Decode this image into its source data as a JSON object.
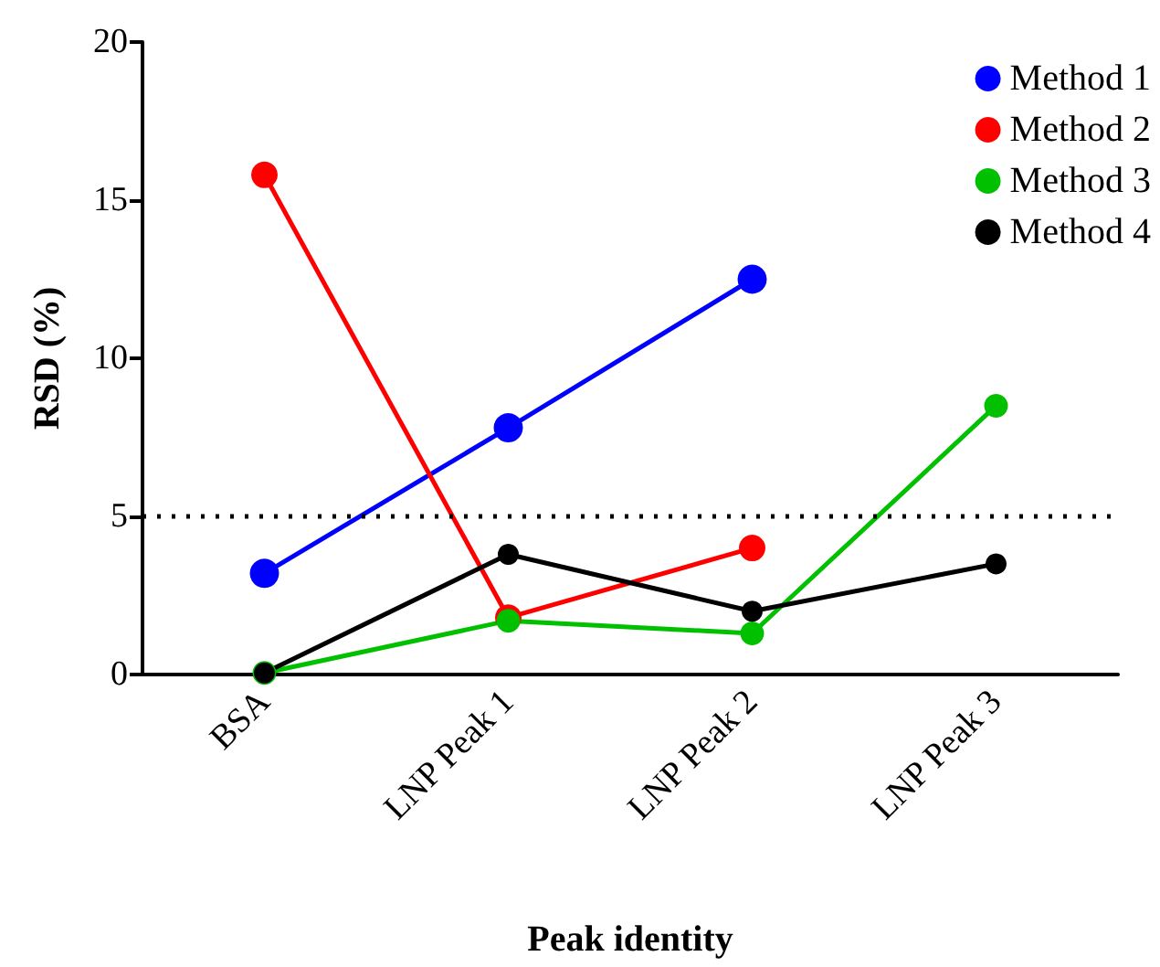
{
  "chart_data": {
    "type": "line",
    "xlabel": "Peak identity",
    "ylabel": "RSD (%)",
    "categories": [
      "BSA",
      "LNP Peak 1",
      "LNP Peak 2",
      "LNP Peak 3"
    ],
    "series": [
      {
        "name": "Method 1",
        "color": "#0000ff",
        "values": [
          3.2,
          7.8,
          12.5,
          null
        ]
      },
      {
        "name": "Method 2",
        "color": "#ff0000",
        "values": [
          15.8,
          1.8,
          4.0,
          null
        ]
      },
      {
        "name": "Method 3",
        "color": "#00c000",
        "values": [
          0.05,
          1.7,
          1.3,
          8.5
        ]
      },
      {
        "name": "Method 4",
        "color": "#000000",
        "values": [
          0.05,
          3.8,
          2.0,
          3.5
        ]
      }
    ],
    "ylim": [
      0,
      20
    ],
    "yticks": [
      0,
      5,
      10,
      15,
      20
    ],
    "ref_lines": [
      {
        "axis": "y",
        "value": 5,
        "color": "#000000",
        "line_style": "dotted"
      }
    ],
    "legend": "top right",
    "marker": "circle"
  }
}
